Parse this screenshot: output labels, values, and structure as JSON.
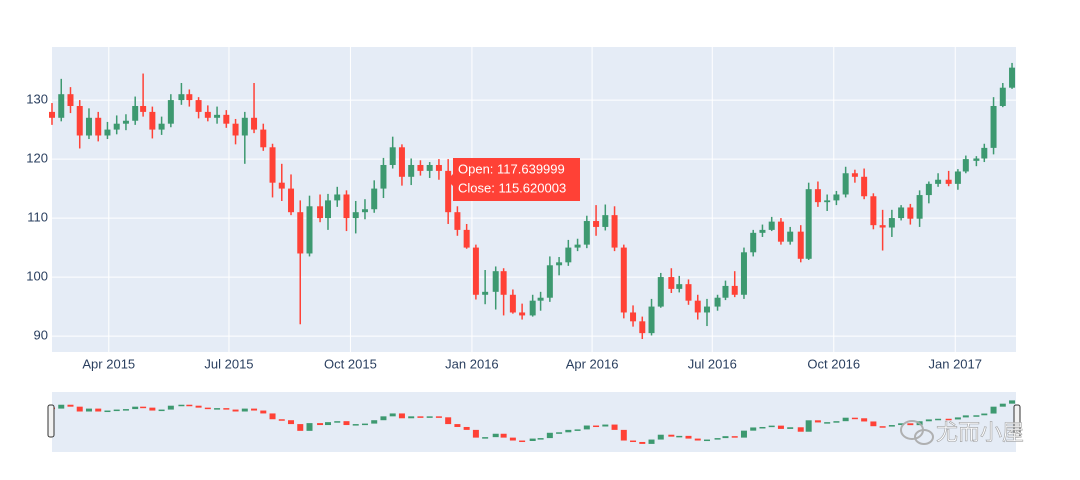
{
  "chart_data": {
    "type": "candlestick",
    "x": [
      "2015-02-17",
      "2015-02-24",
      "2015-03-03",
      "2015-03-10",
      "2015-03-17",
      "2015-03-24",
      "2015-03-31",
      "2015-04-07",
      "2015-04-14",
      "2015-04-21",
      "2015-04-27",
      "2015-05-04",
      "2015-05-11",
      "2015-05-18",
      "2015-05-26",
      "2015-06-01",
      "2015-06-08",
      "2015-06-15",
      "2015-06-22",
      "2015-06-29",
      "2015-07-06",
      "2015-07-13",
      "2015-07-20",
      "2015-07-27",
      "2015-08-03",
      "2015-08-10",
      "2015-08-17",
      "2015-08-24",
      "2015-08-31",
      "2015-09-08",
      "2015-09-14",
      "2015-09-21",
      "2015-09-28",
      "2015-10-05",
      "2015-10-12",
      "2015-10-19",
      "2015-10-26",
      "2015-11-02",
      "2015-11-09",
      "2015-11-16",
      "2015-11-23",
      "2015-11-30",
      "2015-12-07",
      "2015-12-14",
      "2015-12-21",
      "2015-12-28",
      "2016-01-04",
      "2016-01-11",
      "2016-01-19",
      "2016-01-25",
      "2016-02-01",
      "2016-02-08",
      "2016-02-16",
      "2016-02-22",
      "2016-02-29",
      "2016-03-07",
      "2016-03-14",
      "2016-03-21",
      "2016-03-28",
      "2016-04-04",
      "2016-04-11",
      "2016-04-18",
      "2016-04-25",
      "2016-05-02",
      "2016-05-09",
      "2016-05-16",
      "2016-05-23",
      "2016-05-31",
      "2016-06-06",
      "2016-06-13",
      "2016-06-20",
      "2016-06-27",
      "2016-07-05",
      "2016-07-11",
      "2016-07-18",
      "2016-07-25",
      "2016-08-01",
      "2016-08-08",
      "2016-08-15",
      "2016-08-22",
      "2016-08-29",
      "2016-09-06",
      "2016-09-12",
      "2016-09-19",
      "2016-09-26",
      "2016-10-03",
      "2016-10-10",
      "2016-10-17",
      "2016-10-24",
      "2016-10-31",
      "2016-11-07",
      "2016-11-14",
      "2016-11-21",
      "2016-11-28",
      "2016-12-05",
      "2016-12-12",
      "2016-12-19",
      "2016-12-27",
      "2017-01-03",
      "2017-01-09",
      "2017-01-17",
      "2017-01-23",
      "2017-01-30",
      "2017-02-06",
      "2017-02-13"
    ],
    "open": [
      128,
      127,
      131,
      129,
      124,
      127,
      124,
      125,
      126,
      126.5,
      129,
      128,
      125,
      126,
      130,
      131,
      130,
      128,
      127,
      127.5,
      126,
      124,
      127,
      125,
      122,
      116,
      115,
      111,
      104,
      112,
      110,
      113,
      114,
      110,
      111,
      111.5,
      115,
      119,
      122,
      117,
      119,
      118,
      119,
      118,
      111,
      108,
      105,
      97,
      97.5,
      101,
      97,
      94,
      93.5,
      96,
      96.5,
      102,
      102.5,
      105,
      105.5,
      109.5,
      108.5,
      110.5,
      105,
      94,
      92.5,
      90.5,
      95,
      100,
      98,
      98.8,
      96,
      94,
      95,
      96.5,
      98.5,
      97,
      104.2,
      107.5,
      108,
      109.4,
      106,
      107.7,
      103.1,
      114.9,
      112.7,
      113,
      114,
      117.6,
      117,
      113.7,
      108.8,
      108.4,
      110,
      111.8,
      109.9,
      113.9,
      115.8,
      116.5,
      115.8,
      117.9,
      119.7,
      120.1,
      121.9,
      129,
      132.1
    ],
    "high": [
      129.5,
      133.6,
      132.2,
      130.0,
      128.6,
      128.0,
      126.3,
      127.4,
      127.6,
      130.6,
      134.5,
      128.9,
      127.2,
      131.0,
      132.9,
      131.8,
      130.5,
      129.1,
      128.9,
      128.3,
      126.8,
      128.0,
      132.9,
      126.0,
      122.6,
      119.2,
      117.4,
      113.0,
      113.8,
      114.0,
      114.1,
      115.3,
      114.7,
      112.9,
      113.2,
      116.4,
      120.2,
      123.8,
      122.5,
      120.1,
      119.8,
      119.5,
      120.0,
      120.0,
      112.0,
      109.0,
      105.5,
      101.2,
      101.8,
      101.5,
      97.9,
      95.5,
      97.0,
      97.5,
      103.5,
      103.4,
      106.3,
      106.5,
      110.4,
      112.2,
      112.3,
      112.0,
      105.5,
      95.2,
      93.3,
      96.3,
      100.7,
      101.5,
      100.2,
      99.6,
      97.0,
      96.3,
      97.0,
      99.4,
      101.0,
      105.0,
      108.0,
      108.9,
      110.2,
      110.0,
      108.5,
      108.8,
      116.0,
      116.2,
      114.0,
      114.6,
      118.7,
      118.2,
      118.4,
      114.2,
      111.4,
      111.4,
      112.2,
      112.4,
      114.7,
      116.2,
      117.6,
      118.0,
      118.3,
      120.6,
      120.5,
      122.6,
      130.5,
      132.9,
      136.3
    ],
    "low": [
      125.8,
      126.4,
      127.8,
      121.8,
      123.4,
      123.0,
      123.4,
      124.2,
      124.9,
      125.8,
      127.2,
      123.5,
      124.1,
      125.4,
      129.2,
      128.9,
      126.9,
      126.4,
      126.0,
      125.3,
      122.5,
      119.2,
      124.4,
      121.4,
      113.5,
      112.9,
      110.5,
      92.0,
      103.5,
      109.3,
      108.0,
      111.9,
      107.8,
      107.4,
      109.8,
      110.9,
      113.4,
      118.4,
      115.5,
      115.6,
      117.2,
      116.8,
      116.5,
      109.0,
      107.0,
      104.8,
      96.2,
      95.4,
      94.5,
      93.5,
      93.8,
      92.8,
      93.3,
      94.3,
      95.8,
      100.3,
      101.9,
      104.4,
      104.9,
      107.0,
      107.9,
      104.4,
      93.0,
      91.6,
      89.5,
      90.1,
      94.8,
      97.3,
      97.4,
      95.3,
      92.8,
      91.7,
      94.3,
      96.1,
      96.6,
      96.3,
      103.5,
      106.8,
      107.8,
      105.5,
      105.5,
      102.5,
      102.9,
      111.9,
      111.2,
      112.2,
      113.5,
      116.0,
      113.2,
      108.1,
      104.5,
      106.8,
      109.6,
      108.9,
      108.5,
      112.5,
      115.3,
      115.4,
      114.8,
      117.6,
      118.8,
      119.5,
      120.8,
      128.8,
      131.9
    ],
    "close": [
      127,
      131,
      129,
      124,
      127,
      124,
      125,
      126,
      126.5,
      129,
      128,
      125,
      126,
      130,
      131,
      130,
      128,
      127,
      127.5,
      126,
      124,
      127,
      125,
      122,
      116,
      115,
      111,
      104,
      112,
      110,
      113,
      114,
      110,
      111,
      111.5,
      115,
      119,
      122,
      117,
      119,
      118,
      119,
      118,
      111,
      108,
      105,
      97,
      97.5,
      101,
      97,
      94,
      93.5,
      96,
      96.5,
      102,
      102.5,
      105,
      105.5,
      109.5,
      108.5,
      110.5,
      105,
      94,
      92.5,
      90.5,
      95,
      100,
      98,
      98.8,
      96,
      94,
      95,
      96.5,
      98.5,
      97,
      104.2,
      107.5,
      108,
      109.4,
      106,
      107.7,
      103.1,
      114.9,
      112.7,
      113,
      114,
      117.6,
      117,
      113.7,
      108.8,
      108.4,
      110,
      111.8,
      109.9,
      113.9,
      115.8,
      116.5,
      115.8,
      117.9,
      120,
      120.1,
      121.9,
      129,
      132.1,
      135.5
    ],
    "increasing_color": "#3d9970",
    "decreasing_color": "#ff4136",
    "xlim": [
      "2015-02-17",
      "2017-02-16"
    ],
    "xticks": [
      {
        "value": "2015-04-01",
        "label": "Apr 2015"
      },
      {
        "value": "2015-07-01",
        "label": "Jul 2015"
      },
      {
        "value": "2015-10-01",
        "label": "Oct 2015"
      },
      {
        "value": "2016-01-01",
        "label": "Jan 2016"
      },
      {
        "value": "2016-04-01",
        "label": "Apr 2016"
      },
      {
        "value": "2016-07-01",
        "label": "Jul 2016"
      },
      {
        "value": "2016-10-01",
        "label": "Oct 2016"
      },
      {
        "value": "2017-01-01",
        "label": "Jan 2017"
      }
    ],
    "ylim": [
      87.3,
      139
    ],
    "yticks": [
      90,
      100,
      110,
      120,
      130
    ],
    "grid": true,
    "rangeslider": true,
    "hover_text": [
      "Open: 117.639999",
      "Close: 115.620003"
    ],
    "watermark": "尤而小屋"
  }
}
